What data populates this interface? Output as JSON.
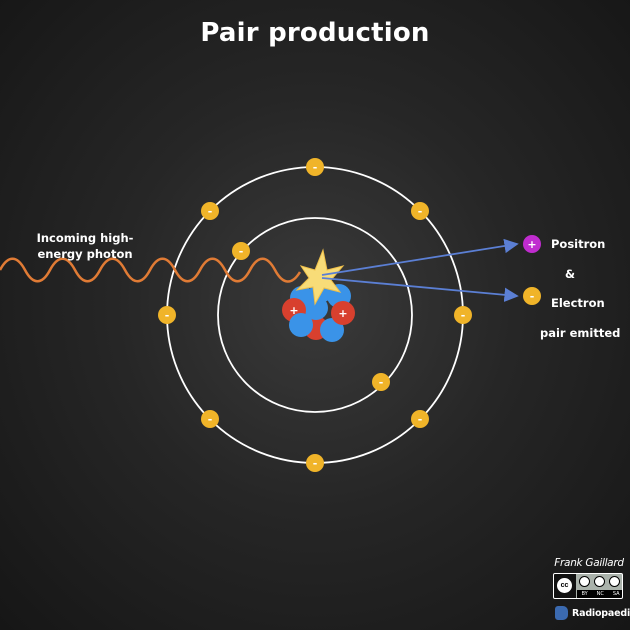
{
  "title": "Pair production",
  "labels": {
    "photon_line1": "Incoming high-",
    "photon_line2": "energy photon",
    "positron": "Positron",
    "ampersand": "&",
    "electron": "Electron",
    "pair_emitted": "pair emitted"
  },
  "symbols": {
    "electron_charge": "-",
    "positive_charge": "+"
  },
  "credit": {
    "author": "Frank Gaillard",
    "license_badge": "CC BY NC SA",
    "license_parts": [
      "BY",
      "NC",
      "SA"
    ],
    "cc_mark": "cc",
    "site": "Radiopaedia"
  },
  "colors": {
    "background": "#1e1e1e",
    "orbit": "#ffffff",
    "electron": "#f0b429",
    "positron": "#c02ccf",
    "photon_wave": "#e07b35",
    "proton": "#d8402e",
    "neutron": "#3a93e8",
    "emission_arrow": "#5b7fd4",
    "flash": "#f8dc78"
  }
}
